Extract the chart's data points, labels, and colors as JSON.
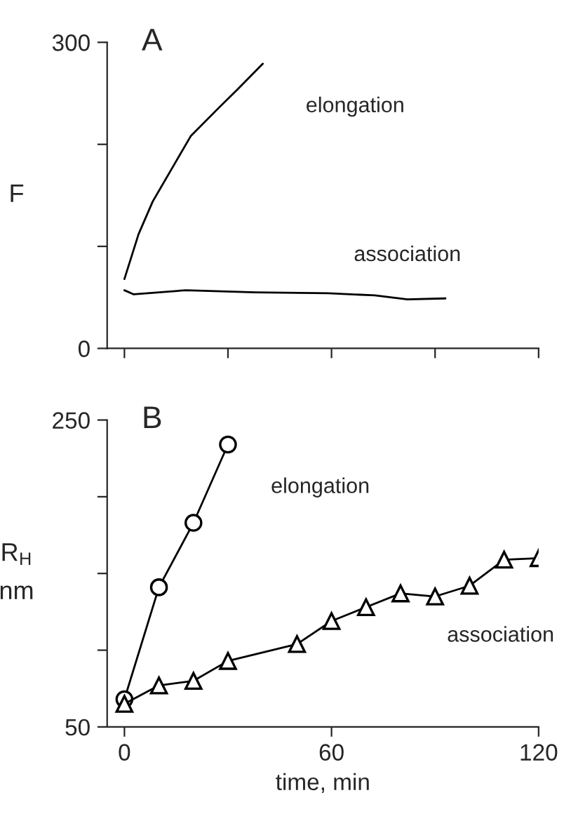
{
  "chart_data": [
    {
      "type": "line",
      "title": "A",
      "ylabel": "F",
      "xlim": [
        -5,
        120
      ],
      "ylim": [
        0,
        300
      ],
      "xticks": [
        0,
        30,
        60,
        90,
        120
      ],
      "yticks": [
        0,
        {
          "value": 100,
          "label": null
        },
        {
          "value": 200,
          "label": null
        },
        300
      ],
      "tick_labels": "y",
      "grid": false,
      "legend": false,
      "marker": "none",
      "series": [
        {
          "name": "elongation",
          "color": "#000000",
          "x": [
            0,
            4.1,
            8.2,
            13.7,
            19.2,
            27.4,
            32.8,
            40.1
          ],
          "values": [
            68,
            112,
            144,
            176,
            208,
            236,
            254,
            279
          ]
        },
        {
          "name": "association",
          "color": "#000000",
          "x": [
            0,
            2.7,
            17.8,
            38,
            59,
            72.5,
            82,
            93
          ],
          "values": [
            57,
            53,
            57,
            55,
            54,
            52,
            48,
            49
          ]
        }
      ]
    },
    {
      "type": "line",
      "title": "B",
      "ylabel": "R$_{H}$\nnm",
      "xlabel": "time, min",
      "xlim": [
        -5,
        120
      ],
      "ylim": [
        50,
        250
      ],
      "xticks": [
        0,
        60,
        120
      ],
      "yticks": [
        50,
        {
          "value": 100,
          "label": null
        },
        {
          "value": 150,
          "label": null
        },
        {
          "value": 200,
          "label": null
        },
        250
      ],
      "grid": false,
      "legend": false,
      "series": [
        {
          "name": "elongation",
          "color": "#000000",
          "marker": "circle",
          "x": [
            0,
            10,
            20,
            30
          ],
          "values": [
            68,
            141,
            183,
            234
          ]
        },
        {
          "name": "association",
          "color": "#000000",
          "marker": "triangle",
          "x": [
            0,
            10,
            20,
            30,
            50,
            60,
            70,
            80,
            90,
            100,
            110,
            120
          ],
          "values": [
            65,
            77,
            80,
            93,
            104,
            119,
            128,
            137,
            135,
            142,
            159,
            160
          ]
        }
      ]
    }
  ]
}
